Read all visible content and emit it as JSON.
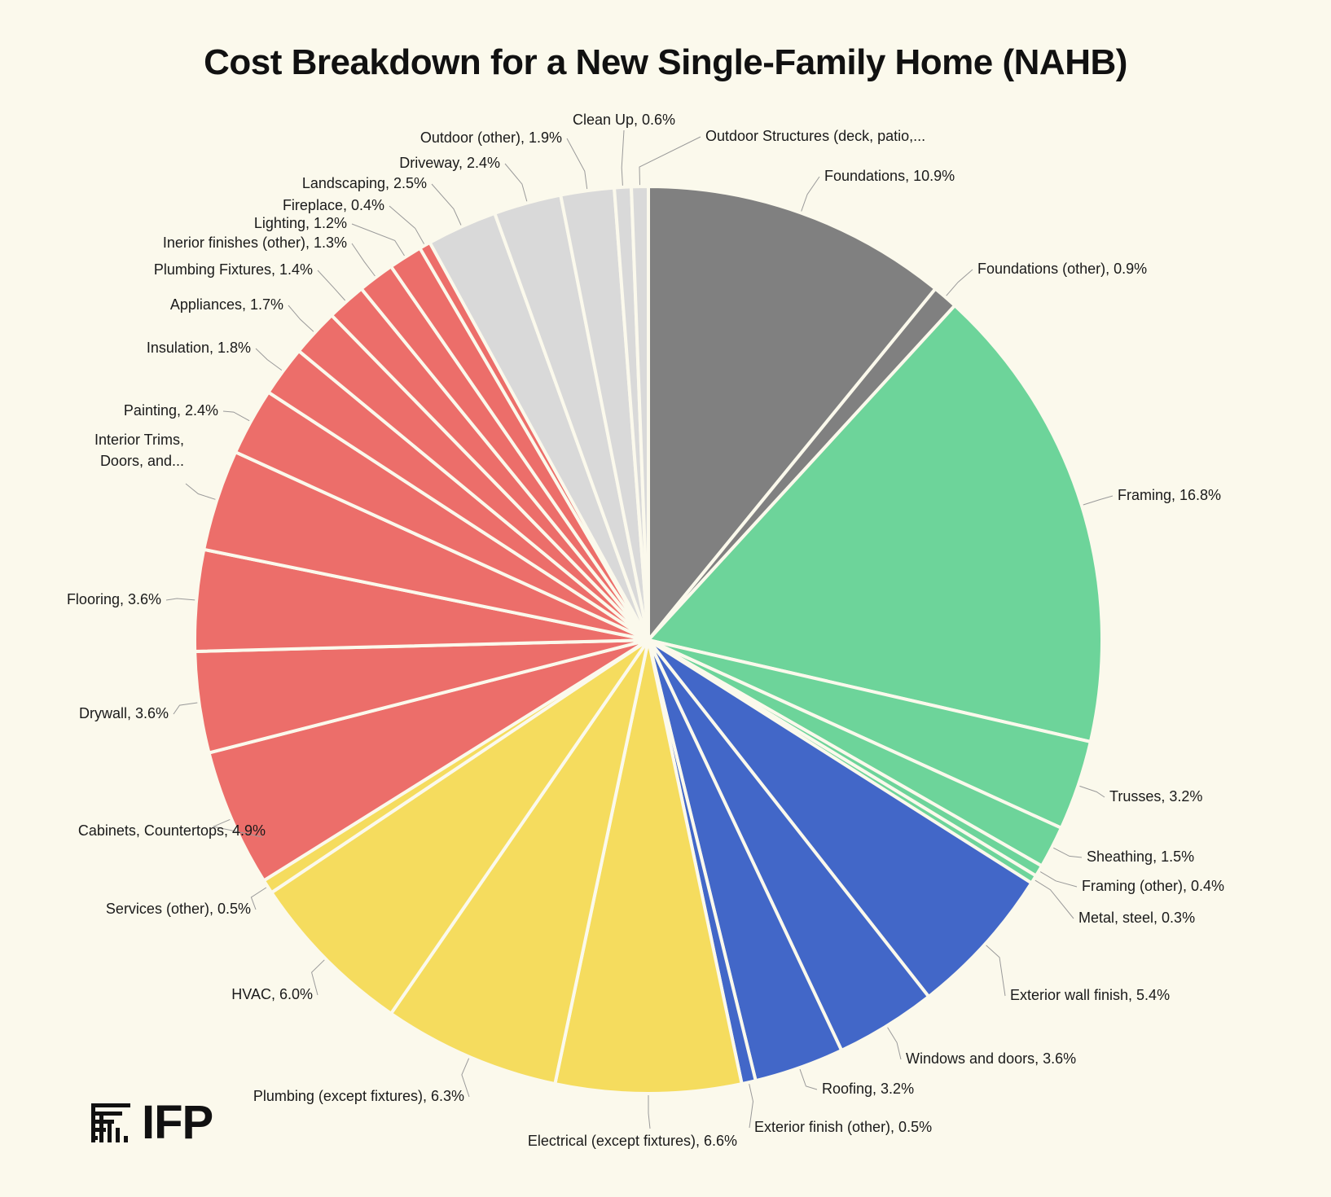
{
  "chart_data": {
    "type": "pie",
    "title": "Cost Breakdown for a New Single-Family Home (NAHB)",
    "start": "12 o'clock",
    "direction": "clockwise",
    "slices": [
      {
        "label": "Foundations, 10.9%",
        "value": 10.9,
        "color": "#808080"
      },
      {
        "label": "Foundations (other), 0.9%",
        "value": 0.9,
        "color": "#808080"
      },
      {
        "label": "Framing, 16.8%",
        "value": 16.8,
        "color": "#6dd49a"
      },
      {
        "label": "Trusses, 3.2%",
        "value": 3.2,
        "color": "#6dd49a"
      },
      {
        "label": "Sheathing, 1.5%",
        "value": 1.5,
        "color": "#6dd49a"
      },
      {
        "label": "Framing (other), 0.4%",
        "value": 0.4,
        "color": "#6dd49a"
      },
      {
        "label": "Metal, steel, 0.3%",
        "value": 0.3,
        "color": "#6dd49a"
      },
      {
        "label": "Exterior wall finish, 5.4%",
        "value": 5.4,
        "color": "#4267c8"
      },
      {
        "label": "Windows and doors, 3.6%",
        "value": 3.6,
        "color": "#4267c8"
      },
      {
        "label": "Roofing, 3.2%",
        "value": 3.2,
        "color": "#4267c8"
      },
      {
        "label": "Exterior finish (other), 0.5%",
        "value": 0.5,
        "color": "#4267c8"
      },
      {
        "label": "Electrical (except fixtures), 6.6%",
        "value": 6.6,
        "color": "#f5dc5e"
      },
      {
        "label": "Plumbing (except fixtures), 6.3%",
        "value": 6.3,
        "color": "#f5dc5e"
      },
      {
        "label": "HVAC, 6.0%",
        "value": 6.0,
        "color": "#f5dc5e"
      },
      {
        "label": "Services (other), 0.5%",
        "value": 0.5,
        "color": "#f5dc5e"
      },
      {
        "label": "Cabinets, Countertops, 4.9%",
        "value": 4.9,
        "color": "#ec6e6a"
      },
      {
        "label": "Drywall, 3.6%",
        "value": 3.6,
        "color": "#ec6e6a"
      },
      {
        "label": "Flooring, 3.6%",
        "value": 3.6,
        "color": "#ec6e6a"
      },
      {
        "label": "Interior Trims, Doors, and...",
        "value": 3.6,
        "color": "#ec6e6a"
      },
      {
        "label": "Painting, 2.4%",
        "value": 2.4,
        "color": "#ec6e6a"
      },
      {
        "label": "Insulation, 1.8%",
        "value": 1.8,
        "color": "#ec6e6a"
      },
      {
        "label": "Appliances, 1.7%",
        "value": 1.7,
        "color": "#ec6e6a"
      },
      {
        "label": "Plumbing Fixtures, 1.4%",
        "value": 1.4,
        "color": "#ec6e6a"
      },
      {
        "label": "Inerior finishes (other), 1.3%",
        "value": 1.3,
        "color": "#ec6e6a"
      },
      {
        "label": "Lighting, 1.2%",
        "value": 1.2,
        "color": "#ec6e6a"
      },
      {
        "label": "Fireplace, 0.4%",
        "value": 0.4,
        "color": "#ec6e6a"
      },
      {
        "label": "Landscaping, 2.5%",
        "value": 2.5,
        "color": "#d9d9d9"
      },
      {
        "label": "Driveway, 2.4%",
        "value": 2.4,
        "color": "#d9d9d9"
      },
      {
        "label": "Outdoor (other), 1.9%",
        "value": 1.9,
        "color": "#d9d9d9"
      },
      {
        "label": "Clean Up, 0.6%",
        "value": 0.6,
        "color": "#d9d9d9"
      },
      {
        "label": "Outdoor Structures (deck, patio,...",
        "value": 0.6,
        "color": "#d9d9d9"
      }
    ]
  },
  "logo": {
    "text": "IFP"
  }
}
